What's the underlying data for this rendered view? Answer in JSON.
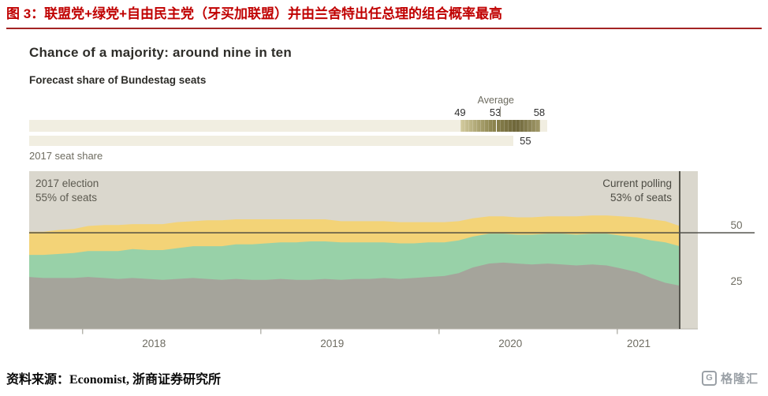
{
  "header": {
    "title": "图 3：联盟党+绿党+自由民主党（牙买加联盟）并由兰舍特出任总理的组合概率最高",
    "accent_color": "#c00000",
    "rule_color": "#a32424"
  },
  "chart_data": {
    "type": "area",
    "title": "Chance of a majority: around nine in ten",
    "subtitle": "Forecast share of Bundestag seats",
    "range_strip": {
      "average_label": "Average",
      "low": 49,
      "mid": 53,
      "high": 58,
      "seat_share_2017": 55,
      "seat_share_2017_label": "2017 seat share",
      "bar_light_color": "#f1eee1",
      "bar_dark_color": "#6d6539"
    },
    "annotations": {
      "left": [
        "2017 election",
        "55% of seats"
      ],
      "right": [
        "Current polling",
        "53% of seats"
      ]
    },
    "plot_bg": "#dad7cd",
    "majority_line": 50,
    "ylim": [
      0,
      82
    ],
    "yticks": [
      50,
      25
    ],
    "xticks": [
      2018,
      2019,
      2020,
      2021
    ],
    "x": [
      2017.7,
      2017.78,
      2017.87,
      2017.95,
      2018.03,
      2018.12,
      2018.2,
      2018.28,
      2018.37,
      2018.45,
      2018.53,
      2018.62,
      2018.7,
      2018.78,
      2018.86,
      2018.95,
      2019.03,
      2019.11,
      2019.2,
      2019.28,
      2019.36,
      2019.45,
      2019.53,
      2019.61,
      2019.69,
      2019.78,
      2019.86,
      2019.94,
      2020.03,
      2020.11,
      2020.19,
      2020.28,
      2020.36,
      2020.44,
      2020.52,
      2020.61,
      2020.69,
      2020.77,
      2020.86,
      2020.94,
      2021.02,
      2021.11,
      2021.19,
      2021.27,
      2021.35
    ],
    "series": [
      {
        "name": "bottom-grey",
        "color": "#a5a49b",
        "values": [
          27,
          26.5,
          26.5,
          26.5,
          27,
          26.5,
          26,
          26.5,
          26,
          25.5,
          26,
          26.5,
          26,
          25.5,
          26,
          25.5,
          25.5,
          26,
          25.5,
          25.5,
          26,
          25.5,
          26,
          26,
          26.5,
          26,
          26.5,
          27,
          27.5,
          29,
          32,
          34,
          34.5,
          34,
          33.5,
          34,
          33.5,
          33,
          33.5,
          33,
          31.5,
          29.5,
          26.5,
          24,
          22.5
        ]
      },
      {
        "name": "middle-green",
        "color": "#98d1a8",
        "values": [
          11.5,
          12,
          12.5,
          13,
          13.5,
          14,
          14.5,
          15,
          15,
          15.5,
          16,
          16.5,
          17,
          17.5,
          18,
          18.5,
          19,
          19,
          19.5,
          20,
          19.5,
          19.5,
          19,
          19,
          18.5,
          18.5,
          18,
          18,
          17.5,
          17,
          16,
          15.5,
          15,
          15,
          15.5,
          15.5,
          16,
          16,
          16,
          16.5,
          17,
          18,
          19.5,
          21,
          20.5
        ]
      },
      {
        "name": "top-yellow",
        "color": "#f3d377",
        "values": [
          12,
          12,
          12.5,
          12.5,
          13,
          13.5,
          13.5,
          13,
          13.5,
          13.5,
          13.5,
          13,
          13.5,
          13.5,
          13,
          13,
          12.5,
          12,
          12,
          11.5,
          11.5,
          11,
          11,
          11,
          11,
          11,
          11,
          10.5,
          10.5,
          10,
          9.5,
          9,
          9,
          9,
          9,
          9,
          9,
          9.5,
          9.5,
          9.5,
          10,
          10.5,
          11,
          11,
          10.5
        ]
      }
    ]
  },
  "footer": {
    "source": "资料来源：Economist, 浙商证券研究所",
    "logo_letter": "G",
    "logo_text": "格隆汇"
  }
}
